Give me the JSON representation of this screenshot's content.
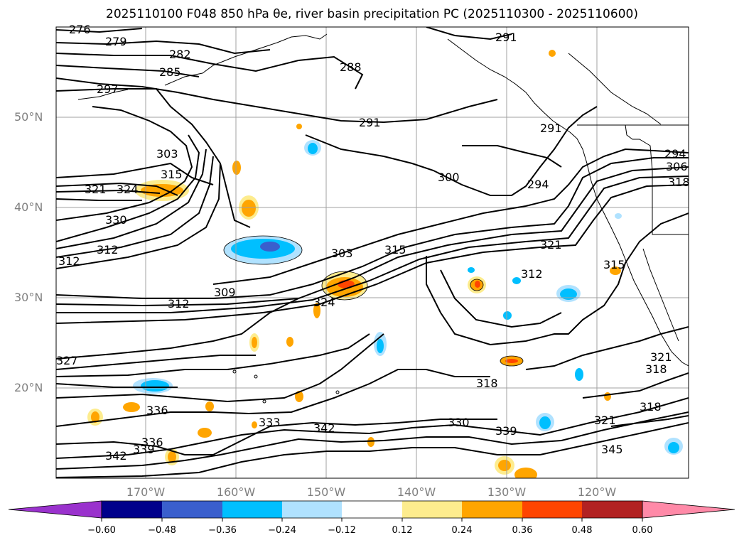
{
  "title": "2025110100 F048 850 hPa θe, river basin precipitation PC (2025110300 - 2025110600)",
  "map": {
    "lat_labels": [
      "50°N",
      "40°N",
      "30°N",
      "20°N"
    ],
    "lon_labels": [
      "170°W",
      "160°W",
      "150°W",
      "140°W",
      "130°W",
      "120°W"
    ],
    "contour_labels": [
      "276",
      "279",
      "282",
      "285",
      "288",
      "291",
      "291",
      "297",
      "291",
      "294",
      "294",
      "300",
      "303",
      "303",
      "306",
      "309",
      "312",
      "312",
      "312",
      "312",
      "315",
      "315",
      "315",
      "318",
      "318",
      "318",
      "318",
      "321",
      "321",
      "321",
      "321",
      "324",
      "324",
      "327",
      "330",
      "330",
      "333",
      "336",
      "336",
      "339",
      "339",
      "342",
      "342",
      "345"
    ],
    "gridline_color": "#a0a0a0",
    "contour_color": "#000000",
    "coast_color": "#000000"
  },
  "colorbar": {
    "tick_labels": [
      "−0.60",
      "−0.48",
      "−0.36",
      "−0.24",
      "−0.12",
      "0.12",
      "0.24",
      "0.36",
      "0.48",
      "0.60"
    ],
    "colors": [
      "#9a32cd",
      "#00008b",
      "#3a5fcd",
      "#00bfff",
      "#b0e2ff",
      "#ffffff",
      "#fdec8e",
      "#ffa500",
      "#ff4500",
      "#b22222",
      "#ff8aa8"
    ]
  }
}
